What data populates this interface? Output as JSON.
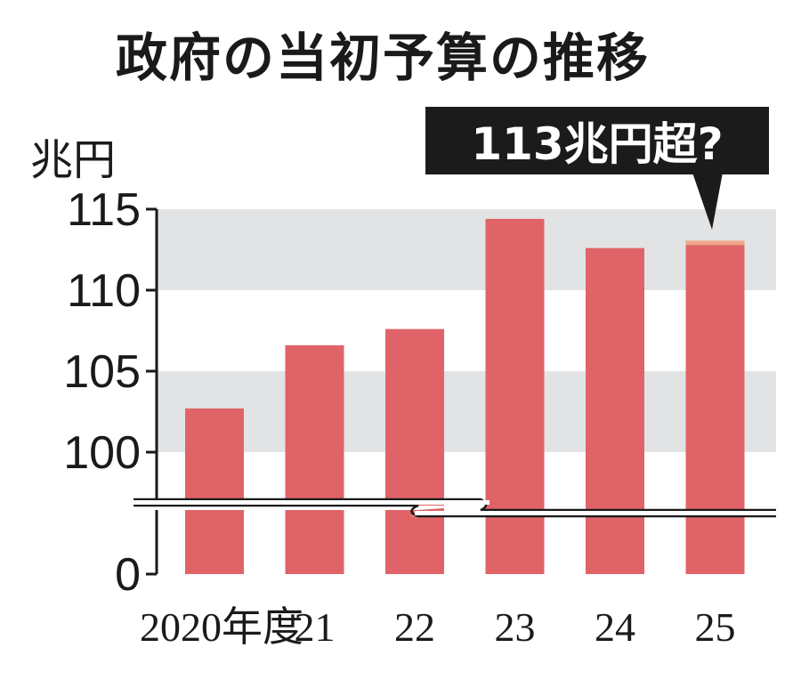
{
  "chart_data": {
    "type": "bar",
    "title": "政府の当初予算の推移",
    "ylabel": "兆円",
    "categories": [
      "2020年度",
      "21",
      "22",
      "23",
      "24",
      "25"
    ],
    "values": [
      102.7,
      106.6,
      107.6,
      114.4,
      112.6,
      113
    ],
    "ylim": [
      100,
      115
    ],
    "axis_break": true,
    "yticks": [
      "115",
      "110",
      "105",
      "100",
      "0"
    ],
    "annotation": "113兆円超?",
    "annotation_target": "25",
    "bar_color": "#e06467",
    "band_color": "#e2e3e5",
    "grid": false
  }
}
